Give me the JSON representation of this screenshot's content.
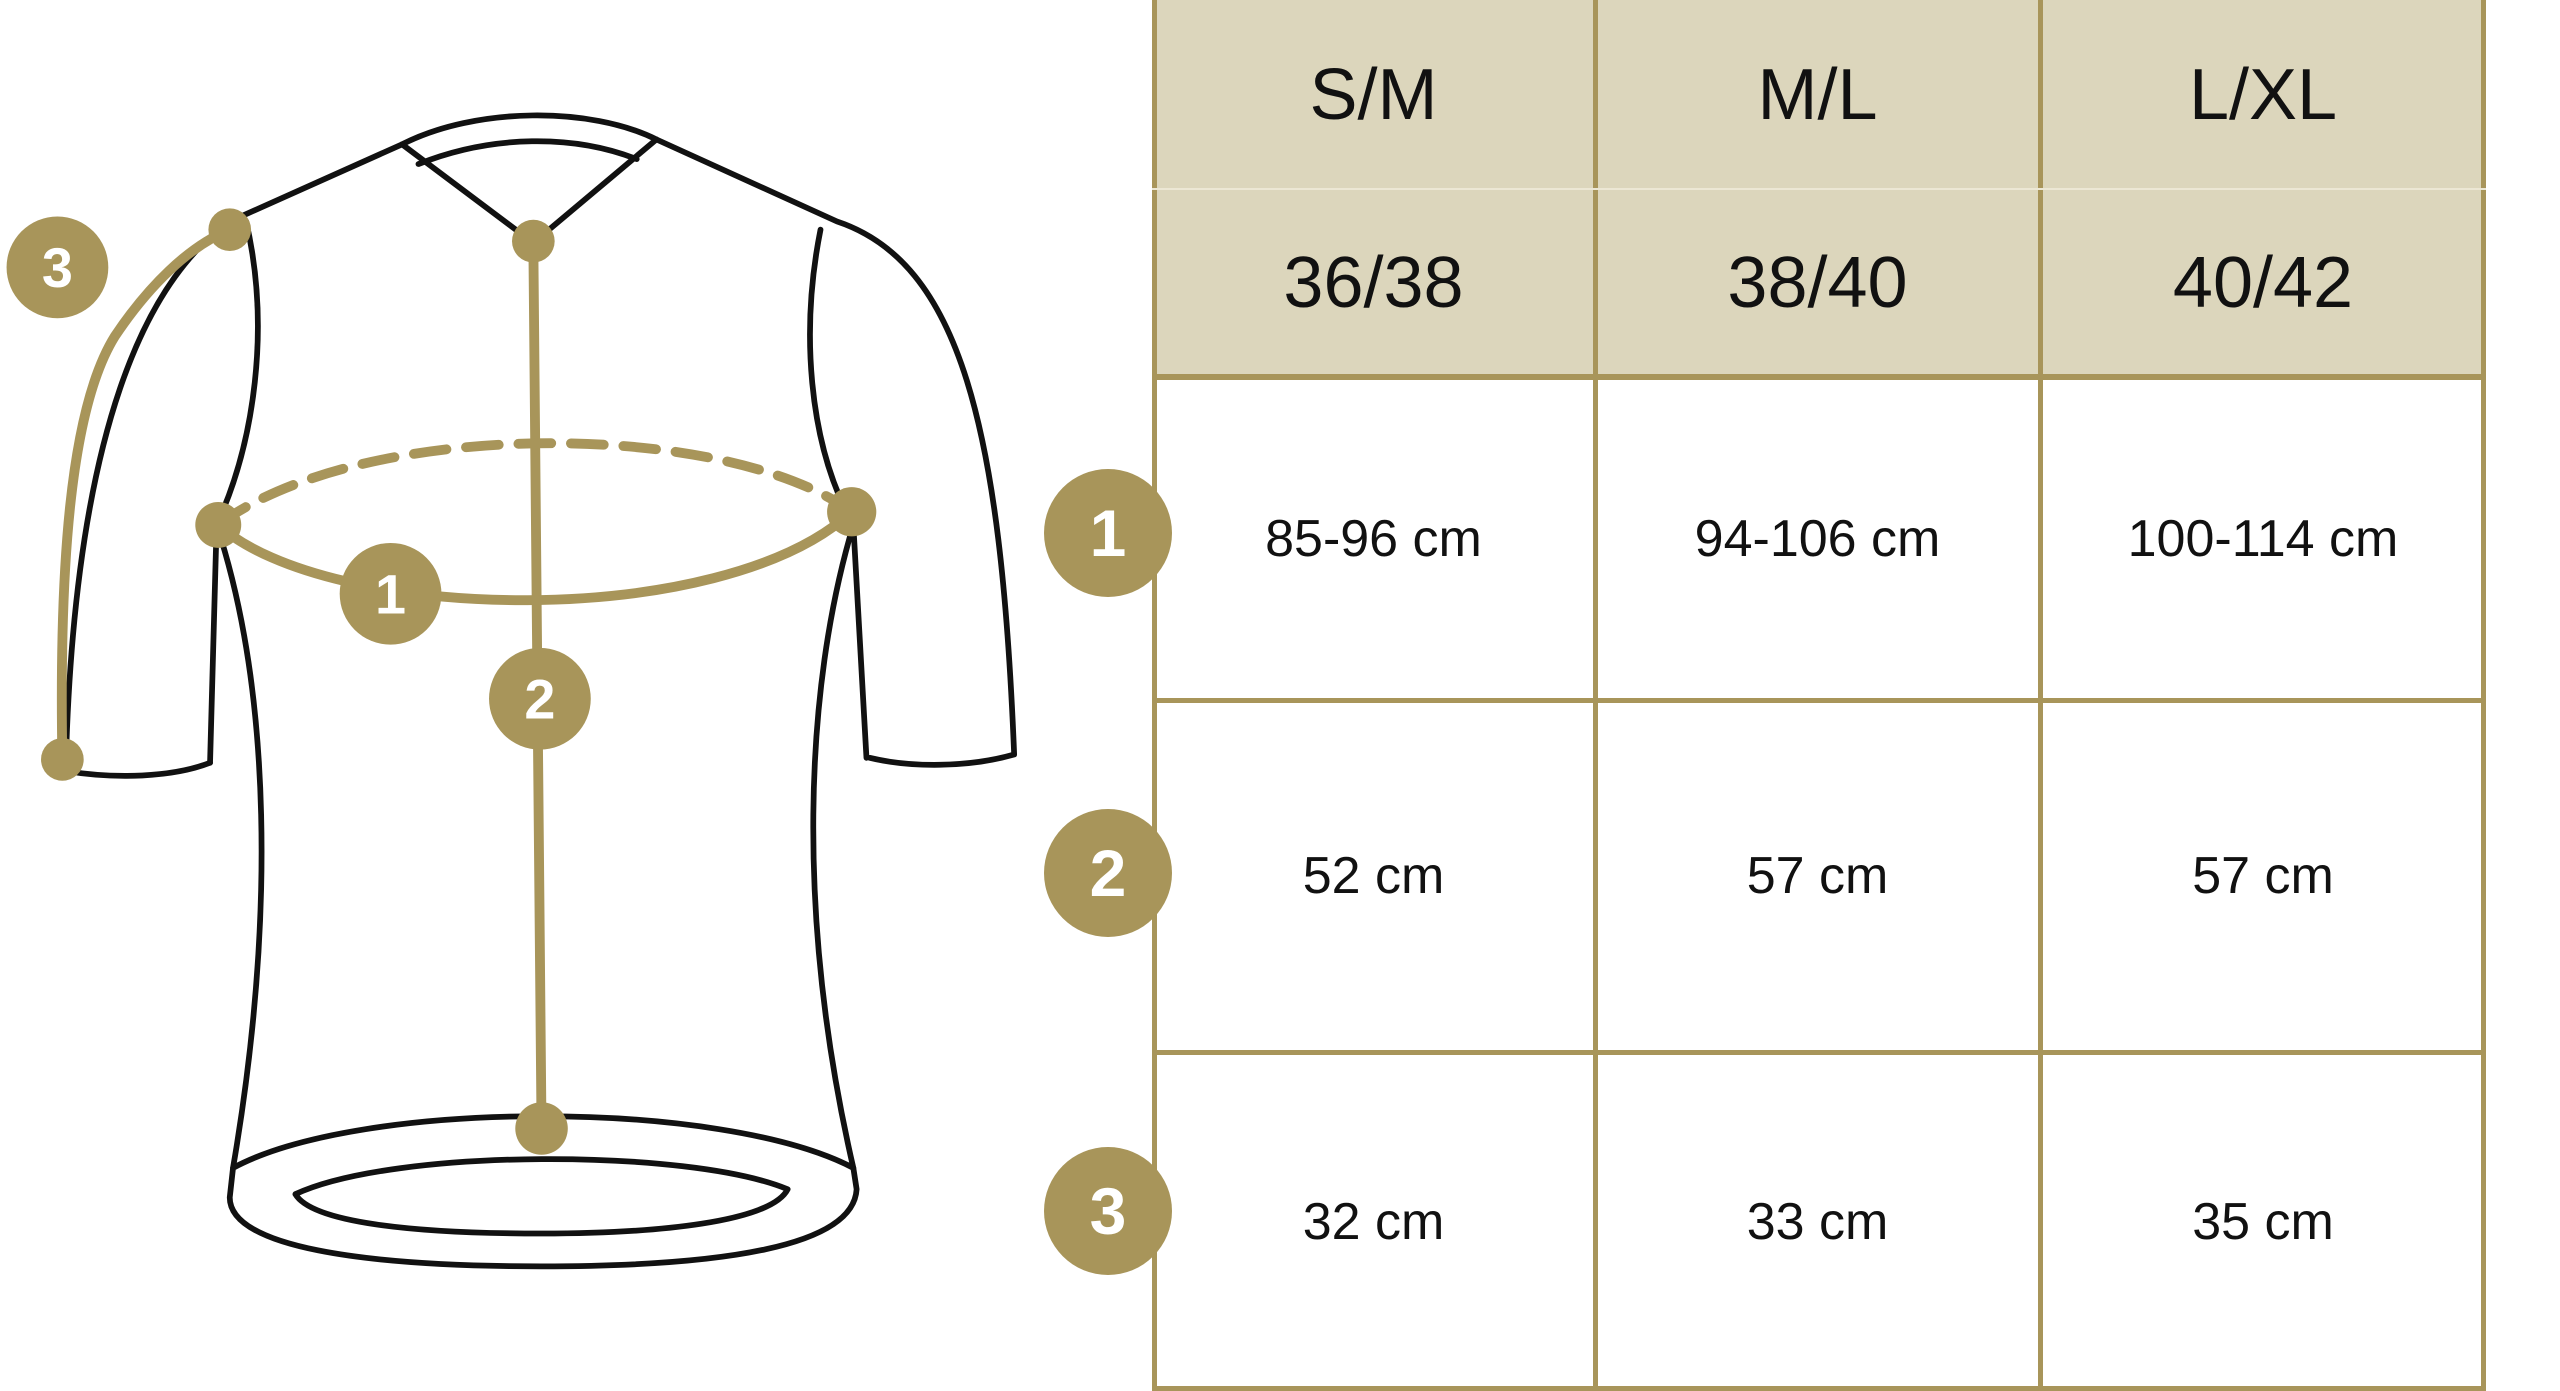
{
  "colors": {
    "accent": "#a8955a",
    "header_bg": "#dcd6bc",
    "outline": "#111111"
  },
  "diagram": {
    "markers": [
      "1",
      "2",
      "3"
    ]
  },
  "table": {
    "sizes": [
      {
        "label": "S/M",
        "eu": "36/38"
      },
      {
        "label": "M/L",
        "eu": "38/40"
      },
      {
        "label": "L/XL",
        "eu": "40/42"
      }
    ],
    "rows": [
      {
        "marker": "1",
        "values": [
          "85-96 cm",
          "94-106 cm",
          "100-114 cm"
        ]
      },
      {
        "marker": "2",
        "values": [
          "52 cm",
          "57 cm",
          "57 cm"
        ]
      },
      {
        "marker": "3",
        "values": [
          "32 cm",
          "33 cm",
          "35 cm"
        ]
      }
    ]
  }
}
